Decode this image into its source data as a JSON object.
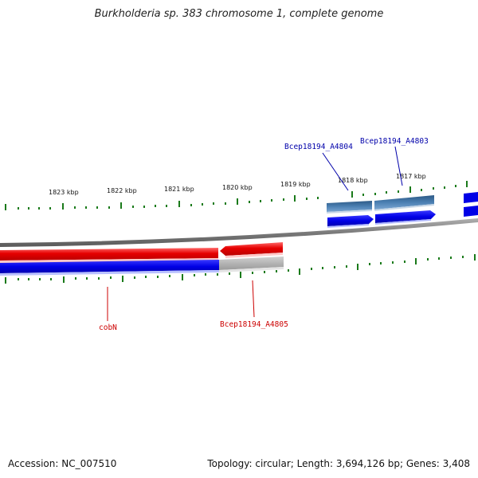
{
  "title": "Burkholderia sp. 383 chromosome 1, complete genome",
  "footer": {
    "accession": "Accession: NC_007510",
    "summary": "Topology: circular; Length: 3,694,126 bp; Genes: 3,408"
  },
  "ticks": [
    "1823 kbp",
    "1822 kbp",
    "1821 kbp",
    "1820 kbp",
    "1819 kbp",
    "1818 kbp",
    "1817 kbp"
  ],
  "genes": {
    "cobN": "cobN",
    "a4805": "Bcep18194_A4805",
    "a4804": "Bcep18194_A4804",
    "a4803": "Bcep18194_A4803"
  },
  "colors": {
    "forward_gene": "#e60000",
    "reverse_gene": "#0000e6",
    "outer_gene": "#3f6f9f",
    "outer_cds": "#0000f0",
    "tick": "#1a7a1a",
    "backbone": "#808080",
    "label_red": "#cc0000",
    "label_blue": "#0000aa"
  }
}
